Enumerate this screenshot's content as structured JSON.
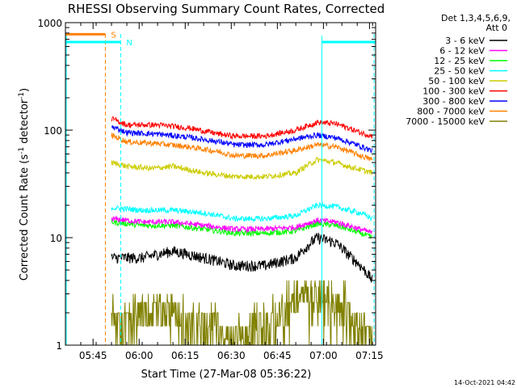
{
  "chart_data": {
    "type": "line",
    "title": "RHESSI Observing Summary Count Rates, Corrected",
    "xlabel": "Start Time (27-Mar-08 05:36:22)",
    "ylabel_main": "Corrected Count Rate (s",
    "ylabel_sup1": "-1",
    "ylabel_mid": " detector",
    "ylabel_sup2": "-1",
    "ylabel_end": ")",
    "y_scale": "log",
    "ylim": [
      1,
      1000
    ],
    "xlim_minutes": [
      0,
      101
    ],
    "x_ticks": [
      {
        "min": 9,
        "label": "05:45"
      },
      {
        "min": 24,
        "label": "06:00"
      },
      {
        "min": 39,
        "label": "06:15"
      },
      {
        "min": 54,
        "label": "06:30"
      },
      {
        "min": 69,
        "label": "06:45"
      },
      {
        "min": 84,
        "label": "07:00"
      },
      {
        "min": 99,
        "label": "07:15"
      }
    ],
    "y_ticks": [
      {
        "value": 1,
        "label": "1"
      },
      {
        "value": 10,
        "label": "10"
      },
      {
        "value": 100,
        "label": "100"
      },
      {
        "value": 1000,
        "label": "1000"
      }
    ],
    "legend_header": [
      "Det 1,3,4,5,6,9,",
      "Att 0"
    ],
    "legend_placement": "right",
    "series": [
      {
        "name": "3 - 6 keV",
        "color": "#000000",
        "x": [
          15,
          25,
          35,
          45,
          55,
          65,
          75,
          82,
          88,
          92,
          96,
          100
        ],
        "y": [
          6.5,
          6.5,
          7.5,
          6.5,
          5.5,
          5.5,
          6.5,
          10,
          9,
          7,
          5.5,
          4
        ]
      },
      {
        "name": "6 - 12 keV",
        "color": "#ff00ff",
        "x": [
          15,
          25,
          35,
          45,
          55,
          65,
          75,
          82,
          88,
          92,
          96,
          100
        ],
        "y": [
          15,
          14,
          14,
          13,
          12,
          12,
          12.5,
          14.5,
          14,
          13,
          12,
          11
        ]
      },
      {
        "name": "12 - 25 keV",
        "color": "#00ff00",
        "x": [
          15,
          25,
          35,
          45,
          55,
          65,
          75,
          82,
          88,
          92,
          96,
          100
        ],
        "y": [
          14,
          13,
          13,
          12,
          11,
          11,
          11.5,
          13.5,
          13,
          12,
          11,
          10
        ]
      },
      {
        "name": "25 - 50 keV",
        "color": "#00ffff",
        "x": [
          15,
          25,
          35,
          45,
          55,
          65,
          75,
          82,
          88,
          92,
          96,
          100
        ],
        "y": [
          19,
          18,
          18,
          17,
          15,
          15,
          16,
          20,
          19.5,
          18,
          17,
          15
        ]
      },
      {
        "name": "50 - 100 keV",
        "color": "#cccc00",
        "x": [
          15,
          20,
          28,
          35,
          45,
          55,
          65,
          75,
          82,
          88,
          92,
          96,
          100
        ],
        "y": [
          50,
          46,
          44,
          46,
          40,
          37,
          37,
          40,
          53,
          50,
          46,
          43,
          40
        ]
      },
      {
        "name": "100 - 300 keV",
        "color": "#ff0000",
        "x": [
          15,
          20,
          30,
          40,
          50,
          55,
          65,
          75,
          82,
          88,
          92,
          96,
          100
        ],
        "y": [
          128,
          112,
          112,
          105,
          92,
          88,
          88,
          100,
          118,
          115,
          105,
          95,
          88
        ]
      },
      {
        "name": "300 - 800 keV",
        "color": "#0000ff",
        "x": [
          15,
          20,
          30,
          40,
          50,
          55,
          65,
          75,
          82,
          88,
          92,
          96,
          100
        ],
        "y": [
          108,
          95,
          92,
          86,
          78,
          73,
          73,
          83,
          90,
          85,
          78,
          71,
          64
        ]
      },
      {
        "name": "800 - 7000 keV",
        "color": "#ff8000",
        "x": [
          15,
          20,
          30,
          40,
          50,
          55,
          65,
          75,
          82,
          88,
          92,
          96,
          100
        ],
        "y": [
          90,
          78,
          75,
          70,
          63,
          58,
          58,
          65,
          73,
          70,
          64,
          58,
          53
        ]
      },
      {
        "name": "7000 - 15000 keV",
        "color": "#808000",
        "x": [
          15,
          30,
          45,
          55,
          65,
          72,
          78,
          85,
          90,
          95,
          100
        ],
        "y": [
          1.5,
          2,
          1.5,
          1,
          1.5,
          2,
          3,
          3,
          2.5,
          1.5,
          1
        ]
      }
    ],
    "flag_bars": [
      {
        "label": "S",
        "color": "#ff8000",
        "x_start": 0,
        "x_end": 13,
        "y": 780
      },
      {
        "label": "N",
        "color": "#00ffff",
        "x_start": 0,
        "x_end": 18,
        "y": 660
      },
      {
        "label": "",
        "color": "#00ffff",
        "x_start": 83.5,
        "x_end": 101,
        "y": 660
      }
    ],
    "vlines": [
      {
        "x": 13,
        "color": "#ff8000",
        "style": "dashed"
      },
      {
        "x": 18,
        "color": "#00ffff",
        "style": "dashed"
      },
      {
        "x": 0.3,
        "color": "#00ffff",
        "style": "solid"
      },
      {
        "x": 83.5,
        "color": "#00ffff",
        "style": "solid"
      },
      {
        "x": 100.5,
        "color": "#00ffff",
        "style": "dashed"
      }
    ],
    "timestamp": "14-Oct-2021 04:42"
  }
}
